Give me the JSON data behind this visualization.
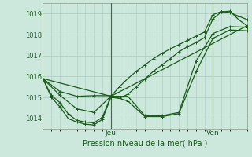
{
  "xlabel": "Pression niveau de la mer( hPa )",
  "bg_color": "#cce8dc",
  "grid_color": "#aacabc",
  "line_color": "#1a5c1a",
  "ylim": [
    1013.5,
    1019.5
  ],
  "xlim": [
    0,
    48
  ],
  "yticks": [
    1014,
    1015,
    1016,
    1017,
    1018,
    1019
  ],
  "xtick_positions": [
    16,
    40
  ],
  "xtick_labels": [
    "Jeu",
    "Ven"
  ],
  "vlines": [
    16,
    40
  ],
  "series": [
    {
      "x": [
        0,
        2,
        4,
        6,
        8,
        10,
        12,
        14,
        16,
        18,
        20,
        22,
        24,
        26,
        28,
        30,
        32,
        34,
        36,
        38,
        40,
        42,
        44,
        46,
        48
      ],
      "y": [
        1015.9,
        1015.1,
        1014.75,
        1014.2,
        1013.9,
        1013.82,
        1013.78,
        1014.05,
        1015.05,
        1015.5,
        1015.9,
        1016.25,
        1016.55,
        1016.85,
        1017.1,
        1017.32,
        1017.52,
        1017.72,
        1017.92,
        1018.12,
        1018.95,
        1019.1,
        1019.05,
        1018.88,
        1018.72
      ]
    },
    {
      "x": [
        0,
        2,
        4,
        6,
        8,
        10,
        12,
        14,
        16,
        18,
        20,
        22,
        24,
        26,
        28,
        30,
        32,
        34,
        36,
        38,
        40,
        42,
        44,
        46,
        48
      ],
      "y": [
        1015.9,
        1015.0,
        1014.55,
        1013.98,
        1013.82,
        1013.72,
        1013.68,
        1013.95,
        1015.0,
        1014.95,
        1015.15,
        1015.5,
        1015.88,
        1016.25,
        1016.55,
        1016.85,
        1017.18,
        1017.42,
        1017.62,
        1017.85,
        1018.75,
        1019.08,
        1019.12,
        1018.72,
        1018.42
      ]
    },
    {
      "x": [
        0,
        4,
        8,
        12,
        16,
        20,
        24,
        28,
        32,
        36,
        40,
        44,
        48
      ],
      "y": [
        1015.9,
        1015.1,
        1014.45,
        1014.28,
        1015.05,
        1015.05,
        1014.12,
        1014.12,
        1014.28,
        1016.72,
        1018.05,
        1018.38,
        1018.35
      ]
    },
    {
      "x": [
        0,
        4,
        8,
        12,
        16,
        20,
        24,
        28,
        32,
        36,
        40,
        44,
        48
      ],
      "y": [
        1015.9,
        1015.28,
        1015.05,
        1015.08,
        1015.08,
        1014.82,
        1014.08,
        1014.08,
        1014.22,
        1016.22,
        1017.82,
        1018.22,
        1018.18
      ]
    },
    {
      "x": [
        0,
        16,
        48
      ],
      "y": [
        1015.9,
        1015.05,
        1018.42
      ],
      "no_marker": true
    }
  ],
  "marker": "+",
  "markersize": 3.5,
  "linewidth": 0.9
}
